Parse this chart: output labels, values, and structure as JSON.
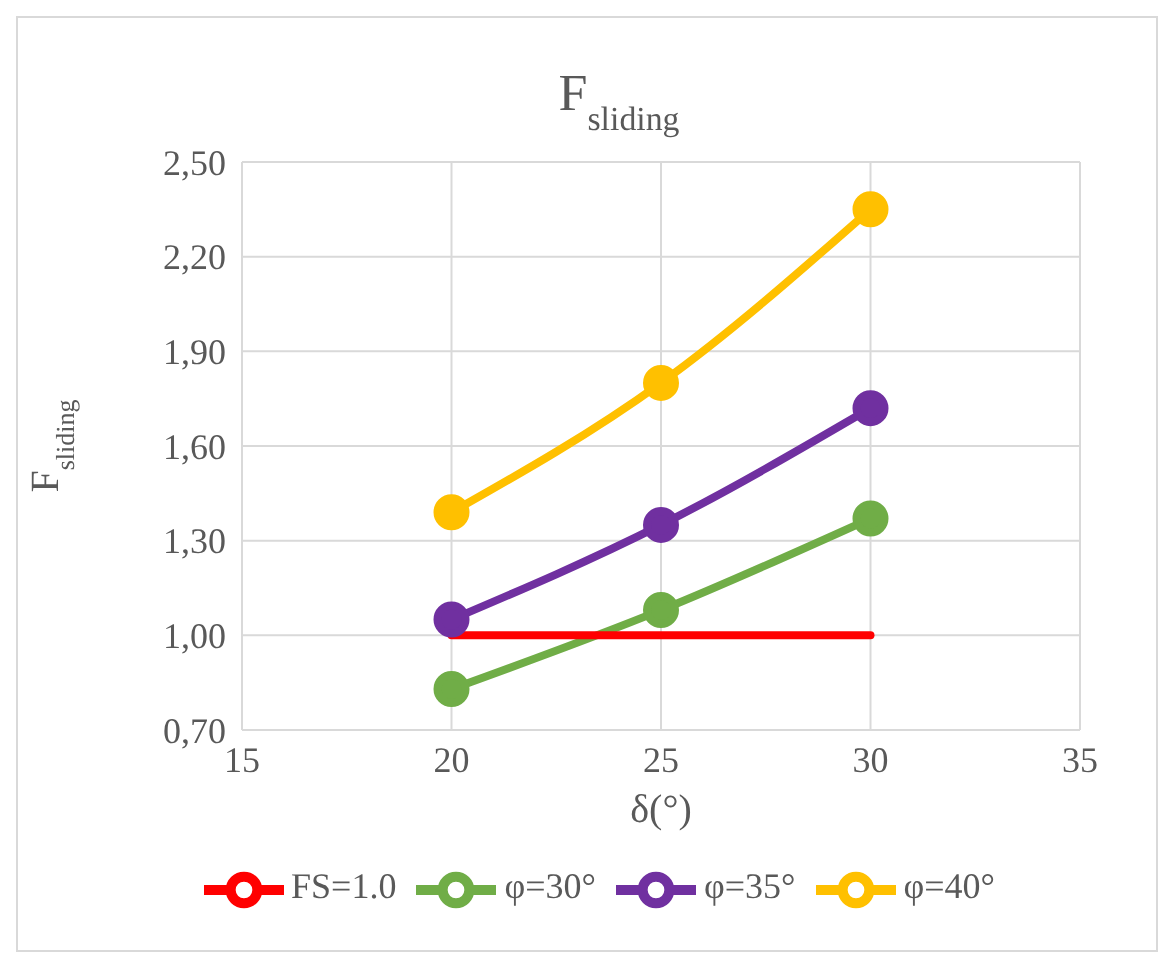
{
  "chart_data": {
    "type": "line",
    "title": "F$_{sliding}$",
    "xlabel": "δ(°)",
    "ylabel": "F$_{sliding}$",
    "x": [
      20,
      25,
      30
    ],
    "series": [
      {
        "name": "φ=30°",
        "color": "#70ad47",
        "values": [
          0.83,
          1.08,
          1.37
        ]
      },
      {
        "name": "φ=35°",
        "color": "#7030a0",
        "values": [
          1.05,
          1.35,
          1.72
        ]
      },
      {
        "name": "φ=40°",
        "color": "#ffc000",
        "values": [
          1.39,
          1.8,
          2.35
        ]
      },
      {
        "name": "FS=1.0",
        "color": "#ff0000",
        "values": [
          1.0,
          1.0,
          1.0
        ],
        "marker": "none"
      }
    ],
    "xlim": [
      15,
      35
    ],
    "xticks": [
      15,
      20,
      25,
      30,
      35
    ],
    "ylim": [
      0.7,
      2.5
    ],
    "yticks": [
      {
        "value": 0.7,
        "label": "0,70"
      },
      {
        "value": 1.0,
        "label": "1,00"
      },
      {
        "value": 1.3,
        "label": "1,30"
      },
      {
        "value": 1.6,
        "label": "1,60"
      },
      {
        "value": 1.9,
        "label": "1,90"
      },
      {
        "value": 2.2,
        "label": "2,20"
      },
      {
        "value": 2.5,
        "label": "2,50"
      }
    ],
    "grid": true,
    "legend": "bottom",
    "marker": "circle",
    "line_style": "solid"
  }
}
